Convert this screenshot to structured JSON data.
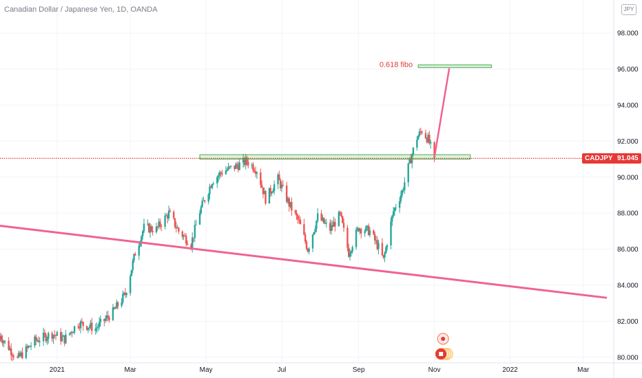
{
  "header": {
    "title": "Canadian Dollar / Japanese Yen, 1D, OANDA",
    "currency_button": "JPY"
  },
  "price_scale": {
    "last_price": "91.045",
    "symbol": "CADJPY"
  },
  "annotation": {
    "fibo_label": "0.618 fibo"
  },
  "colors": {
    "up": "#26a69a",
    "down": "#ef5350",
    "trendline": "#f06292",
    "zone": "#4caf50",
    "last_price": "#e53935",
    "fibo_text": "#e53935"
  },
  "chart_data": {
    "type": "candlestick",
    "title": "Canadian Dollar / Japanese Yen, 1D, OANDA",
    "symbol": "CADJPY",
    "y_ticks": [
      "98.000",
      "96.000",
      "94.000",
      "92.000",
      "90.000",
      "88.000",
      "86.000",
      "84.000",
      "82.000",
      "80.000"
    ],
    "y_range": [
      79.8,
      99.0
    ],
    "x_ticks": [
      "2021",
      "Mar",
      "May",
      "Jul",
      "Sep",
      "Nov",
      "2022",
      "Mar"
    ],
    "x_range": [
      "2020-11-16",
      "2022-03-25"
    ],
    "last_price": 91.045,
    "trendline": {
      "start": {
        "date": "2020-11-16",
        "price": 87.3
      },
      "end": {
        "date": "2022-03-20",
        "price": 83.3
      }
    },
    "resistance_zone": {
      "from": "2021-04-26",
      "to": "2021-11-30",
      "low": 91.0,
      "high": 91.25
    },
    "fibo_zone": {
      "from": "2021-10-19",
      "to": "2021-12-17",
      "low": 96.05,
      "high": 96.2,
      "label": "0.618 fibo"
    },
    "projection": [
      {
        "date": "2021-11-01",
        "price": 91.1
      },
      {
        "date": "2021-11-13",
        "price": 96.05
      }
    ],
    "close_series": [
      {
        "date": "2020-11-16",
        "close": 81.2
      },
      {
        "date": "2020-11-30",
        "close": 79.9
      },
      {
        "date": "2020-12-14",
        "close": 80.9
      },
      {
        "date": "2020-12-28",
        "close": 81.3
      },
      {
        "date": "2021-01-07",
        "close": 81.0
      },
      {
        "date": "2021-01-18",
        "close": 81.9
      },
      {
        "date": "2021-02-01",
        "close": 81.6
      },
      {
        "date": "2021-02-15",
        "close": 82.5
      },
      {
        "date": "2021-02-25",
        "close": 83.5
      },
      {
        "date": "2021-03-05",
        "close": 85.8
      },
      {
        "date": "2021-03-12",
        "close": 87.2
      },
      {
        "date": "2021-03-22",
        "close": 87.1
      },
      {
        "date": "2021-04-01",
        "close": 88.0
      },
      {
        "date": "2021-04-09",
        "close": 87.0
      },
      {
        "date": "2021-04-19",
        "close": 86.3
      },
      {
        "date": "2021-04-26",
        "close": 88.1
      },
      {
        "date": "2021-05-06",
        "close": 89.8
      },
      {
        "date": "2021-05-14",
        "close": 90.3
      },
      {
        "date": "2021-05-25",
        "close": 90.6
      },
      {
        "date": "2021-06-03",
        "close": 90.9
      },
      {
        "date": "2021-06-11",
        "close": 90.4
      },
      {
        "date": "2021-06-18",
        "close": 88.8
      },
      {
        "date": "2021-06-28",
        "close": 89.9
      },
      {
        "date": "2021-07-07",
        "close": 88.5
      },
      {
        "date": "2021-07-15",
        "close": 87.5
      },
      {
        "date": "2021-07-22",
        "close": 86.0
      },
      {
        "date": "2021-07-30",
        "close": 87.8
      },
      {
        "date": "2021-08-09",
        "close": 87.1
      },
      {
        "date": "2021-08-17",
        "close": 87.9
      },
      {
        "date": "2021-08-24",
        "close": 85.8
      },
      {
        "date": "2021-09-01",
        "close": 87.2
      },
      {
        "date": "2021-09-10",
        "close": 87.0
      },
      {
        "date": "2021-09-17",
        "close": 86.1
      },
      {
        "date": "2021-09-21",
        "close": 85.4
      },
      {
        "date": "2021-09-29",
        "close": 88.1
      },
      {
        "date": "2021-10-06",
        "close": 89.2
      },
      {
        "date": "2021-10-12",
        "close": 90.8
      },
      {
        "date": "2021-10-18",
        "close": 92.2
      },
      {
        "date": "2021-10-22",
        "close": 92.6
      },
      {
        "date": "2021-10-27",
        "close": 92.1
      },
      {
        "date": "2021-11-01",
        "close": 91.045
      }
    ]
  }
}
